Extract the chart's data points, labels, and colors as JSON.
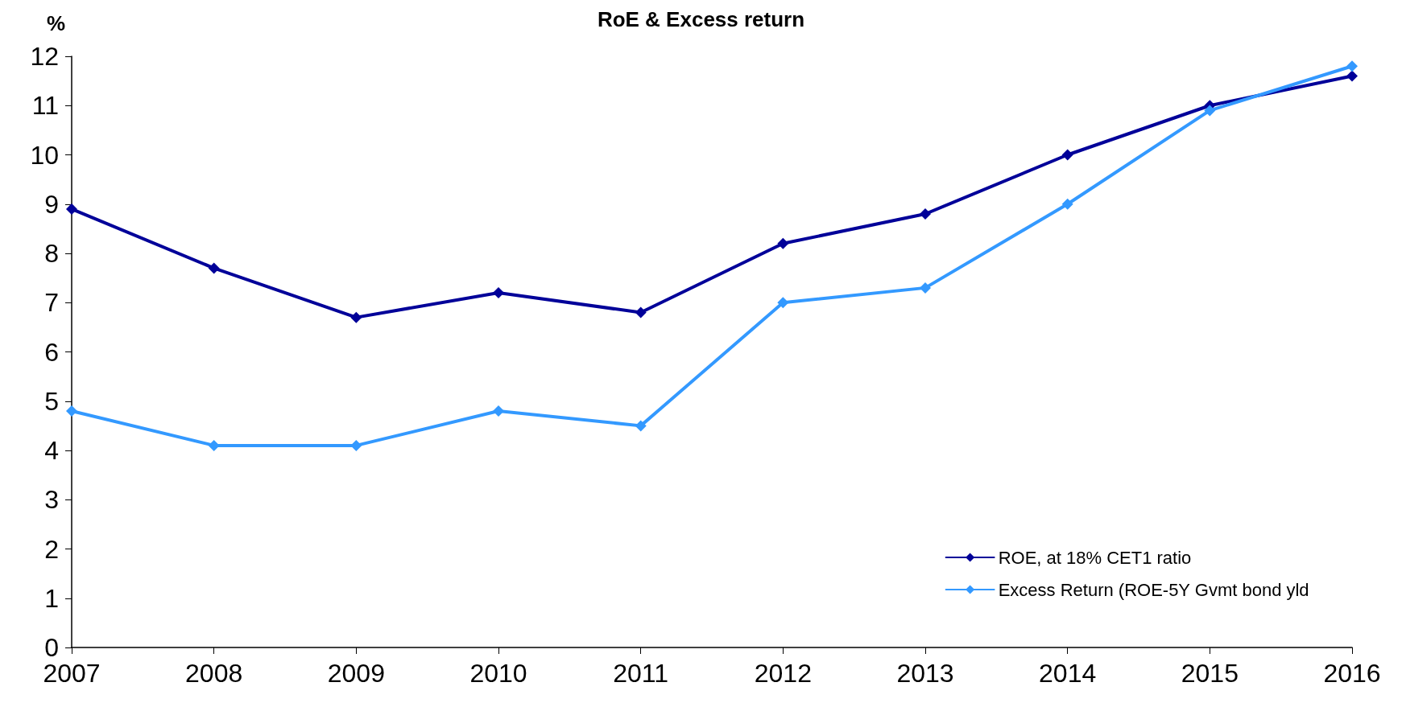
{
  "chart_data": {
    "type": "line",
    "title": "RoE & Excess return",
    "ylabel": "%",
    "categories": [
      "2007",
      "2008",
      "2009",
      "2010",
      "2011",
      "2012",
      "2013",
      "2014",
      "2015",
      "2016"
    ],
    "series": [
      {
        "name": "ROE, at 18% CET1 ratio",
        "color": "#000099",
        "values": [
          8.9,
          7.7,
          6.7,
          7.2,
          6.8,
          8.2,
          8.8,
          10.0,
          11.0,
          11.6
        ]
      },
      {
        "name": "Excess Return (ROE-5Y Gvmt bond yld",
        "color": "#3399ff",
        "values": [
          4.8,
          4.1,
          4.1,
          4.8,
          4.5,
          7.0,
          7.3,
          9.0,
          10.9,
          11.8
        ]
      }
    ],
    "ylim": [
      0,
      12
    ],
    "yticks": [
      0,
      1,
      2,
      3,
      4,
      5,
      6,
      7,
      8,
      9,
      10,
      11,
      12
    ],
    "grid": false,
    "legend": "bottom right",
    "marker": "diamond",
    "line_style": "solid"
  }
}
